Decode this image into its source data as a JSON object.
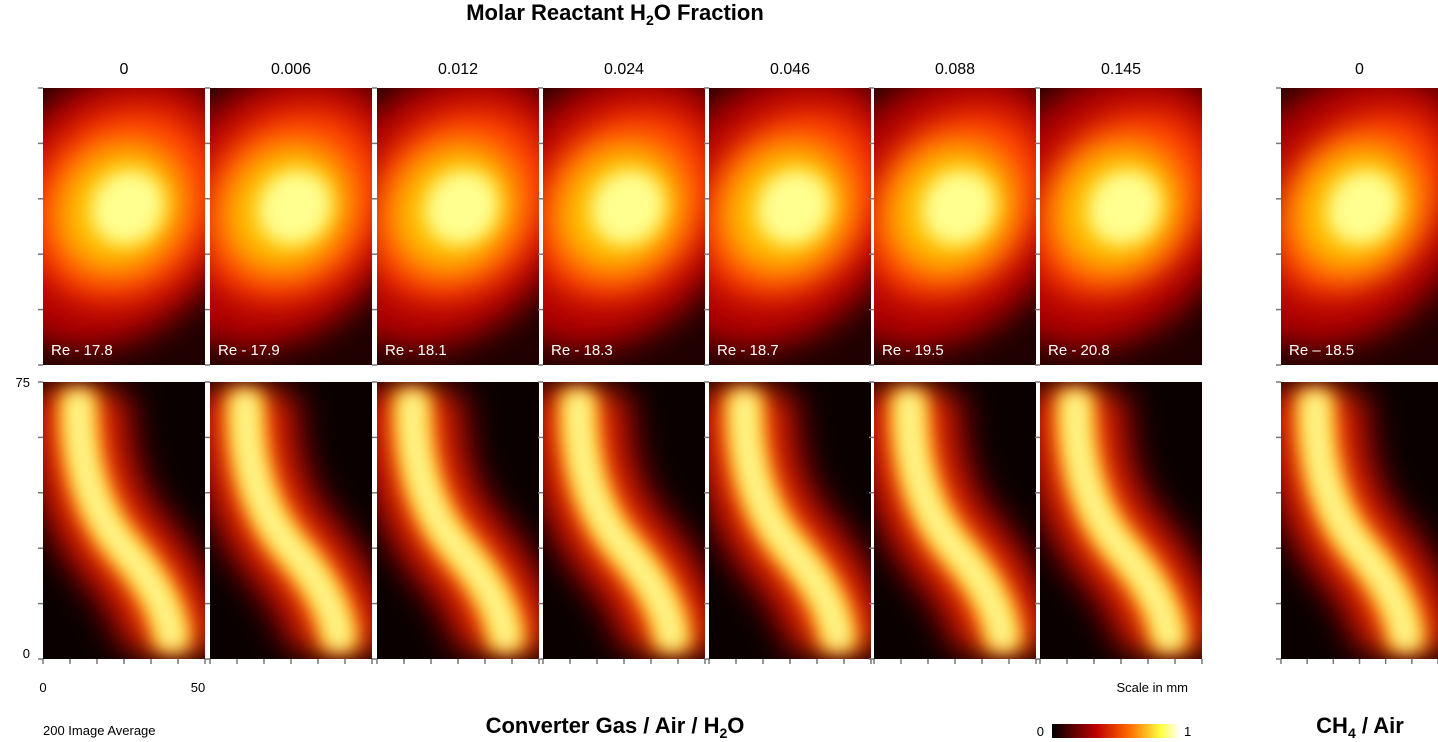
{
  "title": {
    "text": "Molar Reactant H",
    "sub": "2",
    "tail": "O Fraction"
  },
  "columns": [
    {
      "label": "0",
      "re": "Re - 17.8"
    },
    {
      "label": "0.006",
      "re": "Re - 17.9"
    },
    {
      "label": "0.012",
      "re": "Re - 18.1"
    },
    {
      "label": "0.024",
      "re": "Re - 18.3"
    },
    {
      "label": "0.046",
      "re": "Re - 18.7"
    },
    {
      "label": "0.088",
      "re": "Re - 19.5"
    },
    {
      "label": "0.145",
      "re": "Re - 20.8"
    },
    {
      "label": "0",
      "re": "Re – 18.5"
    }
  ],
  "y_axis": {
    "top": "75",
    "bottom": "0"
  },
  "x_axis": {
    "left": "0",
    "right": "50"
  },
  "scale_note": "Scale in mm",
  "average_note": "200 Image Average",
  "footer_left": {
    "text": "Converter Gas / Air / H",
    "sub": "2",
    "tail": "O"
  },
  "footer_right": {
    "text": "CH",
    "sub": "4",
    "tail": " / Air"
  },
  "colorbar": {
    "min": "0",
    "max": "1"
  }
}
